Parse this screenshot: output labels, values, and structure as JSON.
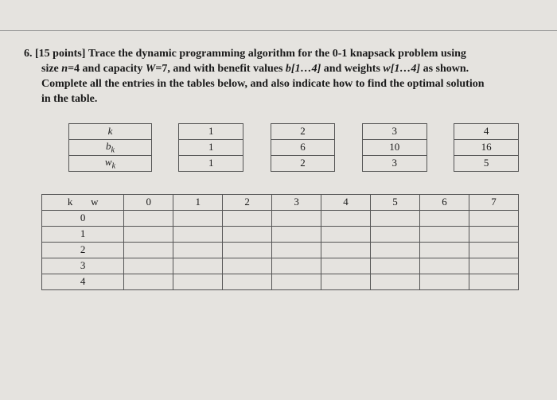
{
  "question": {
    "number": "6.",
    "points": "[15 points]",
    "line1": "Trace the dynamic programming algorithm for the 0-1 knapsack problem using",
    "line2_pre": "size ",
    "n_eq": "n",
    "n_val": "=4",
    "line2_mid1": " and capacity ",
    "w_eq": "W",
    "w_val": "=7",
    "line2_mid2": ", and with benefit values ",
    "b_arr": "b[1…4]",
    "line2_mid3": " and weights ",
    "w_arr": "w[1…4]",
    "line2_end": " as shown.",
    "line3": "Complete all the entries in the tables below, and also indicate how to find the optimal solution",
    "line4": "in the table."
  },
  "params_table": {
    "rows": [
      {
        "label_html": "k",
        "vals": [
          "1",
          "2",
          "3",
          "4"
        ]
      },
      {
        "label_html": "b",
        "sub": "k",
        "vals": [
          "1",
          "6",
          "10",
          "16"
        ]
      },
      {
        "label_html": "w",
        "sub": "k",
        "vals": [
          "1",
          "2",
          "3",
          "5"
        ]
      }
    ]
  },
  "dp_table": {
    "corner_k": "k",
    "corner_w": "w",
    "cols": [
      "0",
      "1",
      "2",
      "3",
      "4",
      "5",
      "6",
      "7"
    ],
    "rows": [
      "0",
      "1",
      "2",
      "3",
      "4"
    ]
  },
  "style": {
    "background_color": "#e5e3df",
    "border_color": "#555555",
    "text_color": "#1a1a1a",
    "font_family": "Times New Roman",
    "base_fontsize": 14
  }
}
